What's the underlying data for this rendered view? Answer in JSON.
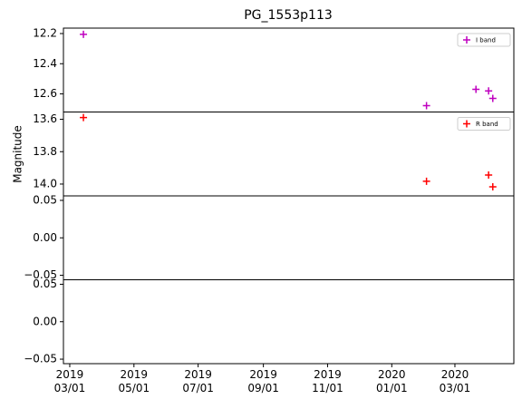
{
  "chart_data": {
    "type": "scatter",
    "title": "PG_1553p113",
    "ylabel": "Magnitude",
    "xlim": [
      "2019-02-23",
      "2020-04-26"
    ],
    "xticks": [
      {
        "value": "2019-03-01",
        "label": "2019\n03/01"
      },
      {
        "value": "2019-05-01",
        "label": "2019\n05/01"
      },
      {
        "value": "2019-07-01",
        "label": "2019\n07/01"
      },
      {
        "value": "2019-09-01",
        "label": "2019\n09/01"
      },
      {
        "value": "2019-11-01",
        "label": "2019\n11/01"
      },
      {
        "value": "2020-01-01",
        "label": "2020\n01/01"
      },
      {
        "value": "2020-03-01",
        "label": "2020\n03/01"
      }
    ],
    "panels": [
      {
        "ylim": [
          12.164,
          12.72
        ],
        "y_inverted": true,
        "yticks": [
          12.2,
          12.4,
          12.6
        ],
        "legend": "upper right",
        "series": [
          {
            "name": "I band",
            "color": "#bf00bf",
            "x": [
              "2019-03-14",
              "2020-02-03",
              "2020-03-21",
              "2020-04-02",
              "2020-04-06"
            ],
            "values": [
              12.205,
              12.678,
              12.57,
              12.58,
              12.63
            ]
          }
        ]
      },
      {
        "ylim": [
          13.555,
          14.073
        ],
        "y_inverted": true,
        "yticks": [
          13.6,
          13.8,
          {
            "value": 14,
            "label": "14.0"
          }
        ],
        "legend": "upper right",
        "series": [
          {
            "name": "R band",
            "color": "#ff0000",
            "x": [
              "2019-03-14",
              "2020-02-03",
              "2020-04-02",
              "2020-04-06"
            ],
            "values": [
              13.589,
              13.983,
              13.944,
              14.017
            ]
          }
        ]
      },
      {
        "ylim": [
          -0.056,
          0.056
        ],
        "yticks": [
          {
            "value": 0.05,
            "label": "0.05"
          },
          {
            "value": 0,
            "label": "0.00"
          },
          {
            "value": -0.05,
            "label": "−0.05"
          }
        ]
      },
      {
        "ylim": [
          -0.056,
          0.056
        ],
        "yticks": [
          {
            "value": 0.05,
            "label": "0.05"
          },
          {
            "value": 0,
            "label": "0.00"
          },
          {
            "value": -0.05,
            "label": "−0.05"
          }
        ]
      }
    ]
  }
}
